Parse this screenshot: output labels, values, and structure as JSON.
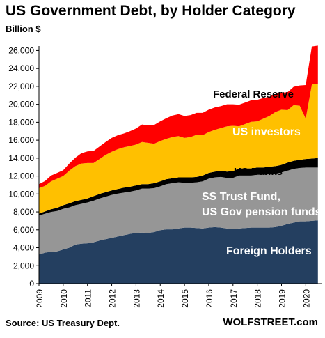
{
  "chart_data": {
    "type": "area",
    "stacked": true,
    "title": "US Government Debt, by Holder Category",
    "ylabel": "Billion $",
    "ylim": [
      0,
      26500
    ],
    "yticks": [
      0,
      2000,
      4000,
      6000,
      8000,
      10000,
      12000,
      14000,
      16000,
      18000,
      20000,
      22000,
      24000,
      26000
    ],
    "ytick_labels": [
      "0",
      "2,000",
      "4,000",
      "6,000",
      "8,000",
      "10,000",
      "12,000",
      "14,000",
      "16,000",
      "18,000",
      "20,000",
      "22,000",
      "24,000",
      "26,000"
    ],
    "x_tick_labels": [
      "2009",
      "2010",
      "2011",
      "2012",
      "2013",
      "2014",
      "2015",
      "2016",
      "2017",
      "2018",
      "2019",
      "2020"
    ],
    "x": [
      2009.0,
      2009.25,
      2009.5,
      2009.75,
      2010.0,
      2010.25,
      2010.5,
      2010.75,
      2011.0,
      2011.25,
      2011.5,
      2011.75,
      2012.0,
      2012.25,
      2012.5,
      2012.75,
      2013.0,
      2013.25,
      2013.5,
      2013.75,
      2014.0,
      2014.25,
      2014.5,
      2014.75,
      2015.0,
      2015.25,
      2015.5,
      2015.75,
      2016.0,
      2016.25,
      2016.5,
      2016.75,
      2017.0,
      2017.25,
      2017.5,
      2017.75,
      2018.0,
      2018.25,
      2018.5,
      2018.75,
      2019.0,
      2019.25,
      2019.5,
      2019.75,
      2020.0,
      2020.25,
      2020.5
    ],
    "series": [
      {
        "name": "Foreign Holders",
        "color": "#243f60",
        "values": [
          3250,
          3450,
          3550,
          3600,
          3800,
          4000,
          4350,
          4450,
          4500,
          4600,
          4800,
          4950,
          5100,
          5250,
          5400,
          5550,
          5650,
          5700,
          5650,
          5750,
          5950,
          6050,
          6050,
          6150,
          6250,
          6250,
          6200,
          6150,
          6250,
          6300,
          6250,
          6150,
          6100,
          6150,
          6200,
          6250,
          6250,
          6250,
          6250,
          6300,
          6450,
          6650,
          6800,
          6950,
          6950,
          7000,
          7050
        ]
      },
      {
        "name": "SS Trust Fund, US Gov pension funds",
        "color": "#969696",
        "values": [
          4350,
          4350,
          4450,
          4500,
          4550,
          4500,
          4400,
          4450,
          4550,
          4650,
          4700,
          4750,
          4800,
          4800,
          4750,
          4700,
          4750,
          4900,
          4950,
          4900,
          4900,
          5050,
          5150,
          5150,
          5000,
          5000,
          5100,
          5250,
          5450,
          5550,
          5650,
          5650,
          5700,
          5900,
          5850,
          5800,
          5900,
          5900,
          5950,
          5950,
          5950,
          5950,
          6000,
          5950,
          6000,
          5950,
          5900
        ]
      },
      {
        "name": "US Banks",
        "color": "#000000",
        "values": [
          200,
          250,
          300,
          350,
          400,
          450,
          450,
          450,
          450,
          500,
          500,
          500,
          500,
          500,
          550,
          550,
          550,
          500,
          500,
          550,
          550,
          550,
          550,
          550,
          600,
          600,
          600,
          650,
          650,
          650,
          700,
          700,
          750,
          800,
          800,
          800,
          800,
          800,
          850,
          850,
          850,
          900,
          900,
          900,
          950,
          1000,
          1050
        ]
      },
      {
        "name": "US investors",
        "color": "#ffc000",
        "values": [
          2850,
          2850,
          3100,
          3250,
          3250,
          3650,
          3900,
          4050,
          3950,
          3700,
          3900,
          4150,
          4300,
          4450,
          4500,
          4550,
          4550,
          4700,
          4600,
          4400,
          4500,
          4500,
          4600,
          4600,
          4400,
          4500,
          4700,
          4500,
          4550,
          4650,
          4750,
          5050,
          5050,
          4700,
          4950,
          5200,
          5150,
          5450,
          5650,
          6050,
          6150,
          5850,
          6200,
          6050,
          4500,
          8250,
          8300
        ]
      },
      {
        "name": "Federal Reserve",
        "color": "#ff0000",
        "values": [
          450,
          550,
          650,
          650,
          650,
          800,
          950,
          1150,
          1300,
          1350,
          1400,
          1450,
          1550,
          1550,
          1550,
          1650,
          1800,
          1950,
          1950,
          2100,
          2200,
          2300,
          2400,
          2450,
          2450,
          2450,
          2450,
          2500,
          2500,
          2500,
          2450,
          2450,
          2400,
          2400,
          2400,
          2400,
          2400,
          2300,
          2150,
          2000,
          1900,
          2000,
          2050,
          2250,
          3750,
          4250,
          4250
        ]
      }
    ]
  },
  "text": {
    "title": "US Government Debt, by Holder Category",
    "unit": "Billion $",
    "source": "Source: US Treasury Dept.",
    "brand": "WOLFSTREET.com",
    "labels": {
      "federal_reserve": "Federal Reserve",
      "us_investors": "US investors",
      "us_banks": "US Banks",
      "ss_line1": "SS Trust Fund,",
      "ss_line2": "US Gov pension funds",
      "foreign": "Foreign Holders"
    }
  }
}
